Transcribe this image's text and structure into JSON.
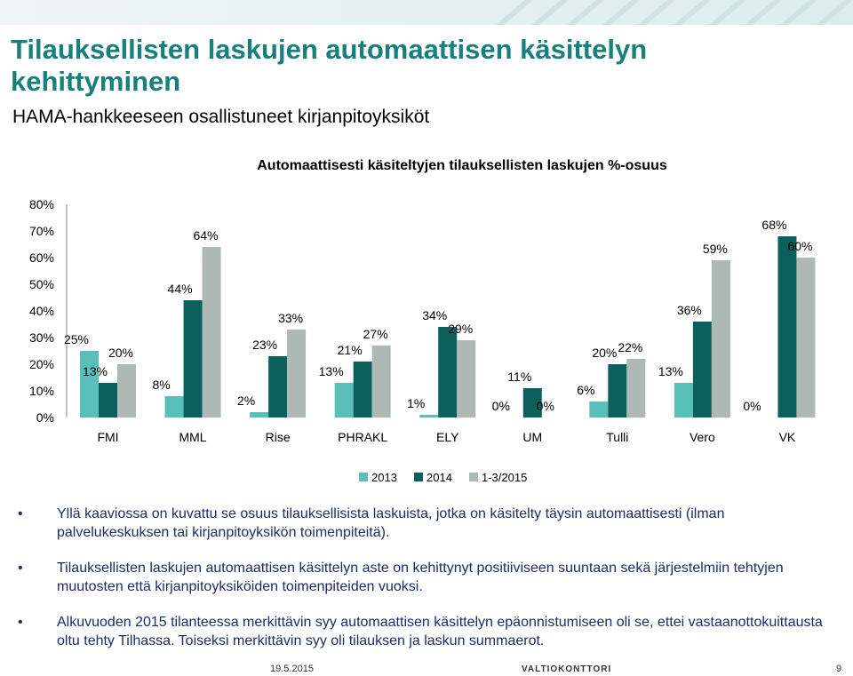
{
  "slide": {
    "title": "Tilauksellisten laskujen automaattisen käsittelyn kehittyminen",
    "subtitle": "HAMA-hankkeeseen osallistuneet kirjanpitoyksiköt",
    "bullets": [
      "Yllä kaaviossa on kuvattu se osuus tilauksellisista laskuista, jotka on käsitelty täysin automaattisesti (ilman palvelukeskuksen tai kirjanpitoyksikön toimenpiteitä).",
      "Tilauksellisten laskujen automaattisen käsittelyn aste on kehittynyt positiiviseen suuntaan sekä järjestelmiin tehtyjen muutosten että kirjanpitoyksiköiden toimenpiteiden vuoksi.",
      "Alkuvuoden 2015 tilanteessa merkittävin syy automaattisen käsittelyn epäonnistumiseen oli se, ettei vastaanottokuittausta oltu tehty Tilhassa. Toiseksi merkittävin syy oli tilauksen ja laskun summaerot."
    ],
    "bullet_symbol": "•",
    "footer": {
      "date": "19.5.2015",
      "logo": "VALTIOKONTTORI",
      "page": "9"
    }
  },
  "chart_data": {
    "type": "bar",
    "title": "Automaattisesti käsiteltyjen tilauksellisten laskujen %-osuus",
    "categories": [
      "FMI",
      "MML",
      "Rise",
      "PHRAKL",
      "ELY",
      "UM",
      "Tulli",
      "Vero",
      "VK"
    ],
    "series": [
      {
        "name": "2013",
        "values": [
          25,
          8,
          2,
          13,
          1,
          0,
          6,
          13,
          null
        ],
        "color": "#58bfb9"
      },
      {
        "name": "2014",
        "values": [
          13,
          44,
          23,
          21,
          34,
          11,
          20,
          36,
          68
        ],
        "color": "#0b5f5c"
      },
      {
        "name": "1-3/2015",
        "values": [
          20,
          64,
          33,
          27,
          29,
          0,
          22,
          59,
          60
        ],
        "color": "#aeb9b6"
      }
    ],
    "data_labels": [
      [
        "25%",
        "8%",
        "2%",
        "13%",
        "1%",
        "0%",
        "6%",
        "13%",
        ""
      ],
      [
        "13%",
        "44%",
        "23%",
        "21%",
        "34%",
        "11%",
        "20%",
        "36%",
        "68%"
      ],
      [
        "20%",
        "64%",
        "33%",
        "27%",
        "29%",
        "0%",
        "22%",
        "59%",
        "60%"
      ]
    ],
    "vk_2013_label": "0%",
    "ylim": [
      0,
      80
    ],
    "yticks": [
      "0%",
      "10%",
      "20%",
      "30%",
      "40%",
      "50%",
      "60%",
      "70%",
      "80%"
    ],
    "grid": false,
    "legend": "bottom-center"
  }
}
